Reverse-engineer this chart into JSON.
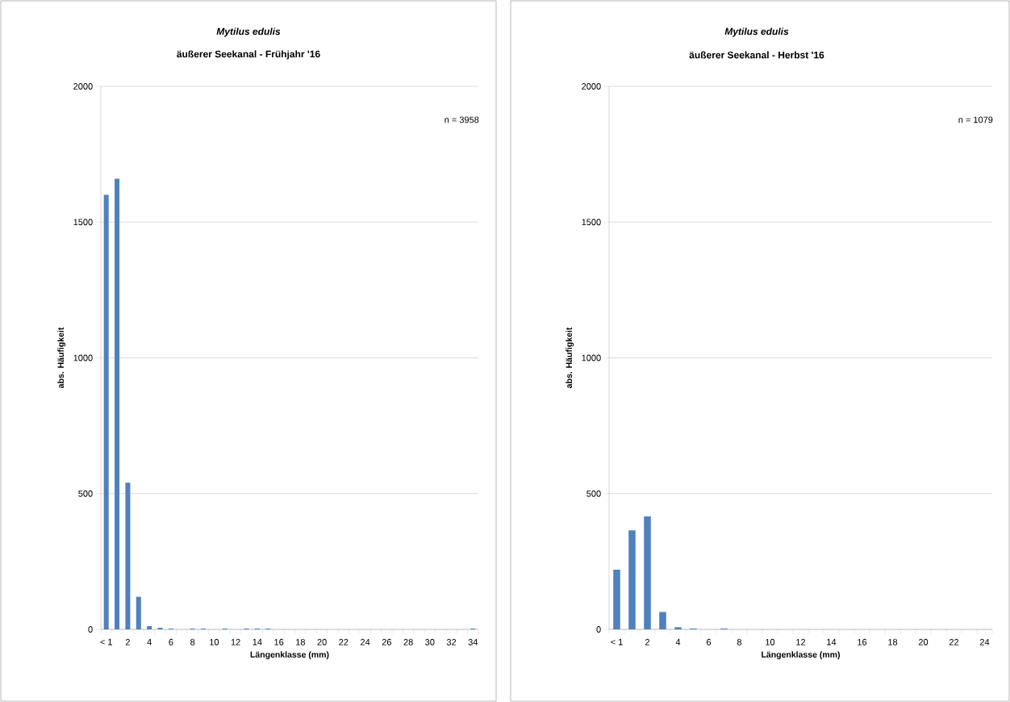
{
  "chart_data": [
    {
      "type": "bar",
      "title": "Mytilus edulis",
      "subtitle": "äußerer Seekanal - Frühjahr  '16",
      "xlabel": "Längenklasse (mm)",
      "ylabel": "abs. Häufigkeit",
      "categories": [
        "< 1",
        null,
        "2",
        null,
        "4",
        null,
        "6",
        null,
        "8",
        null,
        "10",
        null,
        "12",
        null,
        "14",
        null,
        "16",
        null,
        "18",
        null,
        "20",
        null,
        "22",
        null,
        "24",
        null,
        "26",
        null,
        "28",
        null,
        "30",
        null,
        "32",
        null,
        "34"
      ],
      "values": [
        1600,
        1660,
        540,
        120,
        12,
        6,
        3,
        0,
        3,
        3,
        0,
        3,
        0,
        3,
        3,
        3,
        0,
        0,
        0,
        0,
        0,
        0,
        0,
        0,
        0,
        0,
        0,
        0,
        0,
        0,
        0,
        0,
        0,
        0,
        3
      ],
      "color": "#4f81bd",
      "ylim": [
        0,
        2000
      ],
      "yticks": [
        0,
        500,
        1000,
        1500,
        2000
      ],
      "grid": "y",
      "annotations": [
        "n = 3958"
      ]
    },
    {
      "type": "bar",
      "title": "Mytilus edulis",
      "subtitle": "äußerer Seekanal - Herbst '16",
      "xlabel": "Längenklasse (mm)",
      "ylabel": "abs. Häufigkeit",
      "categories": [
        "< 1",
        null,
        "2",
        null,
        "4",
        null,
        "6",
        null,
        "8",
        null,
        "10",
        null,
        "12",
        null,
        "14",
        null,
        "16",
        null,
        "18",
        null,
        "20",
        null,
        "22",
        null,
        "24"
      ],
      "values": [
        220,
        365,
        416,
        64,
        8,
        3,
        0,
        3,
        0,
        0,
        0,
        0,
        0,
        0,
        0,
        0,
        0,
        0,
        0,
        0,
        0,
        0,
        0,
        0,
        0
      ],
      "color": "#4f81bd",
      "ylim": [
        0,
        2000
      ],
      "yticks": [
        0,
        500,
        1000,
        1500,
        2000
      ],
      "grid": "y",
      "annotations": [
        "n = 1079"
      ]
    }
  ]
}
